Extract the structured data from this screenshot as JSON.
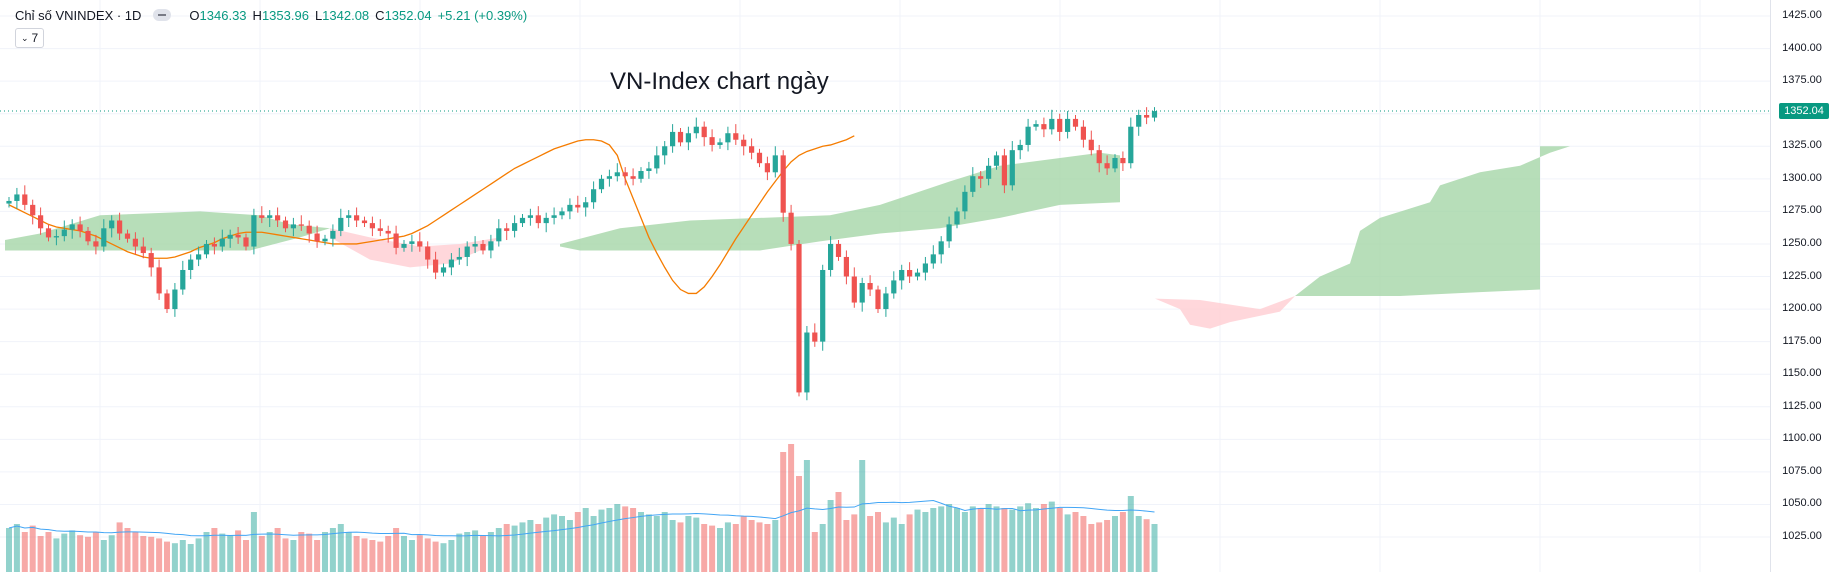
{
  "legend": {
    "symbol": "Chỉ số VNINDEX · 1D",
    "open_label": "O",
    "open": "1346.33",
    "high_label": "H",
    "high": "1353.96",
    "low_label": "L",
    "low": "1342.08",
    "close_label": "C",
    "close": "1352.04",
    "change": "+5.21 (+0.39%)"
  },
  "indicators_toggle": {
    "chevron": "⌄",
    "count": "7"
  },
  "title": "VN-Index chart ngày",
  "last_price": "1352.04",
  "colors": {
    "up": "#26a69a",
    "down": "#ef5350",
    "ma": "#f57c00",
    "vol_ma": "#42a5f5",
    "cloud_bull": "#a5d6a7",
    "cloud_bear": "#ffcdd2",
    "price_line": "#089981"
  },
  "chart_data": {
    "type": "candlestick",
    "interval": "1D",
    "y_axis": {
      "ticks": [
        "1425.00",
        "1400.00",
        "1375.00",
        "1350.00",
        "1325.00",
        "1300.00",
        "1275.00",
        "1250.00",
        "1225.00",
        "1200.00",
        "1175.00",
        "1150.00",
        "1125.00",
        "1100.00",
        "1075.00",
        "1050.00",
        "1025.00"
      ],
      "range": [
        1010,
        1432
      ]
    },
    "closes": [
      1283,
      1288,
      1280,
      1272,
      1262,
      1255,
      1256,
      1261,
      1265,
      1260,
      1252,
      1248,
      1262,
      1268,
      1258,
      1254,
      1248,
      1243,
      1232,
      1212,
      1200,
      1215,
      1230,
      1238,
      1242,
      1250,
      1248,
      1254,
      1257,
      1255,
      1248,
      1272,
      1270,
      1272,
      1268,
      1262,
      1265,
      1264,
      1258,
      1252,
      1254,
      1260,
      1270,
      1272,
      1268,
      1266,
      1262,
      1260,
      1258,
      1247,
      1250,
      1252,
      1248,
      1238,
      1228,
      1232,
      1238,
      1240,
      1248,
      1250,
      1245,
      1252,
      1262,
      1260,
      1266,
      1270,
      1272,
      1266,
      1270,
      1272,
      1275,
      1280,
      1278,
      1282,
      1292,
      1300,
      1302,
      1305,
      1302,
      1300,
      1306,
      1308,
      1318,
      1325,
      1336,
      1328,
      1335,
      1340,
      1332,
      1326,
      1328,
      1335,
      1330,
      1325,
      1320,
      1312,
      1305,
      1318,
      1274,
      1250,
      1136,
      1182,
      1175,
      1230,
      1250,
      1240,
      1225,
      1205,
      1220,
      1215,
      1200,
      1212,
      1222,
      1230,
      1225,
      1228,
      1235,
      1242,
      1252,
      1265,
      1275,
      1290,
      1302,
      1300,
      1310,
      1318,
      1295,
      1322,
      1326,
      1340,
      1342,
      1338,
      1346,
      1336,
      1346,
      1340,
      1330,
      1322,
      1312,
      1308,
      1316,
      1312,
      1340,
      1349,
      1347,
      1352
    ],
    "sma": [
      1280,
      1277,
      1274,
      1271,
      1268,
      1265,
      1263,
      1262,
      1261,
      1260,
      1258,
      1256,
      1253,
      1250,
      1247,
      1244,
      1242,
      1240,
      1239,
      1239,
      1239,
      1240,
      1242,
      1244,
      1247,
      1249,
      1251,
      1254,
      1256,
      1258,
      1259,
      1259,
      1259,
      1258,
      1257,
      1256,
      1255,
      1254,
      1253,
      1252,
      1251,
      1250,
      1250,
      1250,
      1250,
      1251,
      1252,
      1253,
      1254,
      1255,
      1256,
      1258,
      1261,
      1264,
      1268,
      1272,
      1276,
      1280,
      1284,
      1288,
      1292,
      1296,
      1300,
      1304,
      1308,
      1311,
      1314,
      1317,
      1320,
      1323,
      1325,
      1327,
      1329,
      1330,
      1330,
      1329,
      1326,
      1318,
      1300,
      1285,
      1270,
      1255,
      1243,
      1232,
      1222,
      1215,
      1212,
      1212,
      1217,
      1225,
      1234,
      1244,
      1254,
      1263,
      1272,
      1281,
      1290,
      1298,
      1306,
      1313,
      1318,
      1321,
      1323,
      1325,
      1326,
      1328,
      1330,
      1333
    ],
    "volume": [
      0.55,
      0.6,
      0.5,
      0.58,
      0.45,
      0.5,
      0.42,
      0.48,
      0.52,
      0.46,
      0.44,
      0.5,
      0.4,
      0.46,
      0.62,
      0.55,
      0.5,
      0.45,
      0.44,
      0.42,
      0.38,
      0.36,
      0.4,
      0.35,
      0.42,
      0.5,
      0.55,
      0.48,
      0.46,
      0.52,
      0.4,
      0.75,
      0.45,
      0.5,
      0.55,
      0.42,
      0.4,
      0.5,
      0.48,
      0.4,
      0.5,
      0.55,
      0.6,
      0.5,
      0.45,
      0.42,
      0.4,
      0.38,
      0.45,
      0.55,
      0.45,
      0.4,
      0.46,
      0.42,
      0.38,
      0.36,
      0.4,
      0.48,
      0.5,
      0.52,
      0.46,
      0.5,
      0.55,
      0.6,
      0.58,
      0.62,
      0.65,
      0.6,
      0.68,
      0.72,
      0.7,
      0.65,
      0.75,
      0.8,
      0.7,
      0.78,
      0.8,
      0.85,
      0.82,
      0.8,
      0.75,
      0.72,
      0.7,
      0.75,
      0.65,
      0.62,
      0.7,
      0.68,
      0.6,
      0.58,
      0.55,
      0.62,
      0.6,
      0.7,
      0.65,
      0.62,
      0.6,
      0.65,
      1.5,
      1.6,
      1.2,
      1.4,
      0.5,
      0.6,
      0.9,
      1.0,
      0.65,
      0.72,
      1.4,
      0.7,
      0.75,
      0.62,
      0.68,
      0.6,
      0.72,
      0.78,
      0.75,
      0.8,
      0.82,
      0.85,
      0.8,
      0.75,
      0.82,
      0.8,
      0.85,
      0.82,
      0.8,
      0.78,
      0.82,
      0.86,
      0.8,
      0.85,
      0.88,
      0.8,
      0.72,
      0.75,
      0.7,
      0.6,
      0.62,
      0.65,
      0.7,
      0.75,
      0.95,
      0.7,
      0.66,
      0.6
    ]
  }
}
